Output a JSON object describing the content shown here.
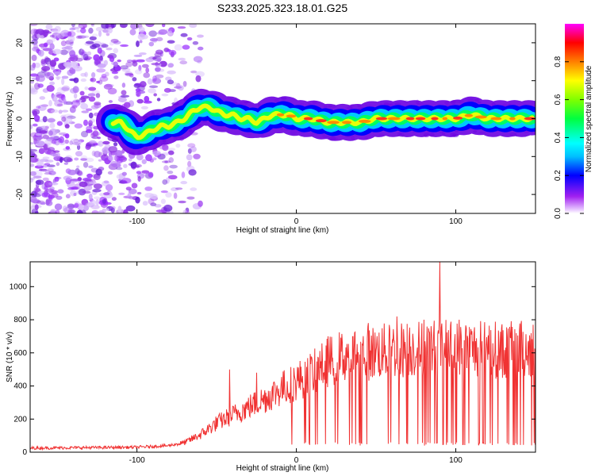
{
  "title": "S233.2025.323.18.01.G25",
  "chart_data": [
    {
      "type": "heatmap",
      "name": "spectrogram",
      "xlabel": "Height of straight line (km)",
      "ylabel": "Frequency (Hz)",
      "xlim": [
        -167,
        150
      ],
      "ylim": [
        -25,
        25
      ],
      "xticks": [
        -100,
        0,
        100
      ],
      "yticks": [
        20,
        10,
        0,
        -10,
        -20
      ],
      "colorbar": {
        "label": "Normalized spectral amplitude",
        "range": [
          0,
          1
        ],
        "ticks": [
          0.0,
          0.2,
          0.4,
          0.6,
          0.8
        ],
        "tick_labels": [
          "0.0",
          "0.2",
          "0.4",
          "0.6",
          "0.8"
        ],
        "colors": [
          "#ffffff",
          "#a020f0",
          "#0000ff",
          "#00ffff",
          "#00ff00",
          "#ffff00",
          "#ff0000",
          "#ff00ff"
        ]
      },
      "noise_region_km": [
        -167,
        -70
      ],
      "ridge": {
        "description_free": true,
        "x_km": [
          -115,
          -110,
          -100,
          -95,
          -90,
          -85,
          -80,
          -75,
          -70,
          -65,
          -60,
          -55,
          -50,
          -45,
          -40,
          -35,
          -30,
          -25,
          -20,
          -15,
          -10,
          -5,
          0,
          10,
          20,
          30,
          40,
          50,
          60,
          70,
          80,
          90,
          100,
          110,
          120,
          130,
          140,
          148
        ],
        "freq_hz": [
          -1,
          -1,
          -5,
          -4,
          -3,
          -2,
          -2,
          -1,
          0,
          2,
          3,
          3,
          2,
          1,
          1,
          0,
          0,
          -1,
          0,
          1,
          1,
          1,
          0,
          0,
          -1,
          -1,
          -1,
          0,
          0,
          0,
          0,
          0,
          0,
          1,
          0,
          0,
          0,
          0
        ]
      }
    },
    {
      "type": "line",
      "name": "snr",
      "xlabel": "Height of straight line (km)",
      "ylabel": "SNR (10 * v/v)",
      "xlim": [
        -167,
        150
      ],
      "ylim": [
        0,
        1150
      ],
      "xticks": [
        -100,
        0,
        100
      ],
      "yticks": [
        0,
        200,
        400,
        600,
        800,
        1000
      ],
      "color": "#f03232",
      "envelope": {
        "x_km": [
          -167,
          -100,
          -80,
          -70,
          -60,
          -50,
          -40,
          -30,
          -20,
          -10,
          0,
          10,
          20,
          30,
          40,
          50,
          60,
          70,
          80,
          90,
          100,
          110,
          120,
          130,
          140,
          150
        ],
        "snr": [
          25,
          30,
          40,
          60,
          110,
          180,
          230,
          280,
          330,
          390,
          440,
          490,
          560,
          600,
          610,
          620,
          630,
          640,
          640,
          650,
          640,
          640,
          640,
          630,
          640,
          640
        ]
      },
      "peaks": [
        {
          "x_km": -42,
          "snr": 500
        },
        {
          "x_km": -25,
          "snr": 480
        },
        {
          "x_km": 20,
          "snr": 700
        },
        {
          "x_km": 45,
          "snr": 780
        },
        {
          "x_km": 63,
          "snr": 820
        },
        {
          "x_km": 80,
          "snr": 800
        },
        {
          "x_km": 90,
          "snr": 1150
        },
        {
          "x_km": 102,
          "snr": 800
        }
      ]
    }
  ]
}
